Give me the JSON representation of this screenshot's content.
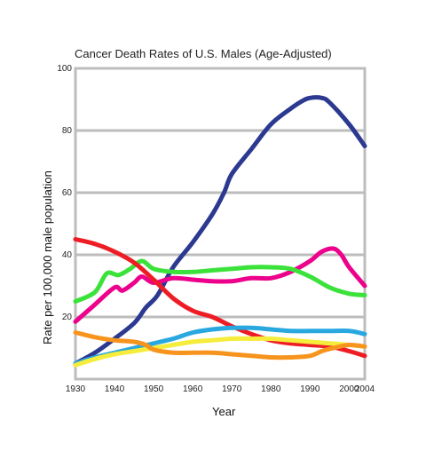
{
  "chart_data": {
    "type": "line",
    "title": "Cancer Death Rates of U.S. Males (Age-Adjusted)",
    "xlabel": "Year",
    "ylabel": "Rate per 100,000 male population",
    "xlim": [
      1930,
      2004
    ],
    "ylim": [
      0,
      100
    ],
    "x_ticks": [
      "1930",
      "1940",
      "1950",
      "1960",
      "1970",
      "1980",
      "1990",
      "2000",
      "2004"
    ],
    "x_tick_values": [
      1930,
      1940,
      1950,
      1960,
      1970,
      1980,
      1990,
      2000,
      2004
    ],
    "y_ticks": [
      "20",
      "40",
      "60",
      "80",
      "100"
    ],
    "y_tick_values": [
      20,
      40,
      60,
      80,
      100
    ],
    "grid": true,
    "legend": "none",
    "series": [
      {
        "color": "#2b3990",
        "points": [
          [
            1930,
            5
          ],
          [
            1935,
            8.5
          ],
          [
            1940,
            13
          ],
          [
            1945,
            18
          ],
          [
            1948,
            23
          ],
          [
            1951,
            27
          ],
          [
            1955,
            36
          ],
          [
            1960,
            44
          ],
          [
            1965,
            53
          ],
          [
            1968,
            60
          ],
          [
            1970,
            66
          ],
          [
            1975,
            74
          ],
          [
            1980,
            82
          ],
          [
            1985,
            87
          ],
          [
            1988,
            89.5
          ],
          [
            1990,
            90.5
          ],
          [
            1993,
            90.5
          ],
          [
            1995,
            89
          ],
          [
            2000,
            82
          ],
          [
            2004,
            75
          ]
        ]
      },
      {
        "color": "#ec008c",
        "points": [
          [
            1930,
            18.5
          ],
          [
            1935,
            24
          ],
          [
            1940,
            29.5
          ],
          [
            1942,
            28.5
          ],
          [
            1945,
            31
          ],
          [
            1947,
            33
          ],
          [
            1950,
            31
          ],
          [
            1955,
            32.5
          ],
          [
            1960,
            32
          ],
          [
            1965,
            31.5
          ],
          [
            1970,
            31.5
          ],
          [
            1975,
            32.5
          ],
          [
            1980,
            32.5
          ],
          [
            1985,
            34.5
          ],
          [
            1990,
            38
          ],
          [
            1993,
            41
          ],
          [
            1996,
            42
          ],
          [
            1998,
            40
          ],
          [
            2000,
            36
          ],
          [
            2004,
            30
          ]
        ]
      },
      {
        "color": "#3ae23a",
        "points": [
          [
            1930,
            25
          ],
          [
            1935,
            28
          ],
          [
            1938,
            34
          ],
          [
            1941,
            33.5
          ],
          [
            1944,
            35.5
          ],
          [
            1947,
            38
          ],
          [
            1950,
            35.5
          ],
          [
            1955,
            34.5
          ],
          [
            1960,
            34.5
          ],
          [
            1965,
            35
          ],
          [
            1970,
            35.5
          ],
          [
            1975,
            36
          ],
          [
            1980,
            36
          ],
          [
            1985,
            35.5
          ],
          [
            1990,
            33
          ],
          [
            1995,
            29.5
          ],
          [
            2000,
            27.5
          ],
          [
            2004,
            27
          ]
        ]
      },
      {
        "color": "#ee1c25",
        "points": [
          [
            1930,
            45
          ],
          [
            1935,
            43.5
          ],
          [
            1940,
            41
          ],
          [
            1945,
            37.5
          ],
          [
            1950,
            32
          ],
          [
            1955,
            26
          ],
          [
            1960,
            22
          ],
          [
            1965,
            20
          ],
          [
            1970,
            17
          ],
          [
            1975,
            14.5
          ],
          [
            1980,
            12.5
          ],
          [
            1985,
            11.5
          ],
          [
            1990,
            11
          ],
          [
            1995,
            10.5
          ],
          [
            2000,
            9
          ],
          [
            2004,
            7.5
          ]
        ]
      },
      {
        "color": "#29a8e0",
        "points": [
          [
            1930,
            5
          ],
          [
            1935,
            7
          ],
          [
            1940,
            8.5
          ],
          [
            1945,
            10
          ],
          [
            1950,
            11.5
          ],
          [
            1955,
            13
          ],
          [
            1960,
            15
          ],
          [
            1965,
            16
          ],
          [
            1970,
            16.5
          ],
          [
            1975,
            16.5
          ],
          [
            1980,
            16
          ],
          [
            1985,
            15.5
          ],
          [
            1990,
            15.5
          ],
          [
            1995,
            15.5
          ],
          [
            2000,
            15.5
          ],
          [
            2004,
            14.5
          ]
        ]
      },
      {
        "color": "#f5ec3c",
        "points": [
          [
            1930,
            4.5
          ],
          [
            1935,
            6.5
          ],
          [
            1940,
            8
          ],
          [
            1945,
            9
          ],
          [
            1950,
            10
          ],
          [
            1955,
            11
          ],
          [
            1960,
            12
          ],
          [
            1965,
            12.5
          ],
          [
            1970,
            13
          ],
          [
            1975,
            13
          ],
          [
            1980,
            13
          ],
          [
            1985,
            12.5
          ],
          [
            1990,
            12
          ],
          [
            1995,
            11.5
          ],
          [
            2000,
            11
          ],
          [
            2004,
            10.5
          ]
        ]
      },
      {
        "color": "#f7941d",
        "points": [
          [
            1930,
            15
          ],
          [
            1935,
            13.5
          ],
          [
            1940,
            12.5
          ],
          [
            1945,
            12
          ],
          [
            1948,
            11
          ],
          [
            1950,
            9.5
          ],
          [
            1955,
            8.5
          ],
          [
            1960,
            8.5
          ],
          [
            1965,
            8.5
          ],
          [
            1970,
            8
          ],
          [
            1975,
            7.5
          ],
          [
            1980,
            7
          ],
          [
            1985,
            7
          ],
          [
            1990,
            7.5
          ],
          [
            1993,
            9
          ],
          [
            1996,
            10
          ],
          [
            2000,
            11
          ],
          [
            2004,
            10.5
          ]
        ]
      }
    ]
  }
}
